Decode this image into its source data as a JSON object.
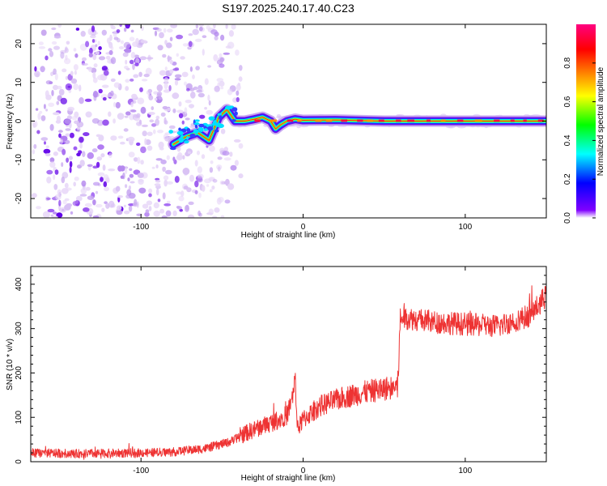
{
  "title": "S197.2025.240.17.40.C23",
  "chart_data": [
    {
      "type": "heatmap",
      "xlabel": "Height of straight line (km)",
      "ylabel": "Frequency (Hz)",
      "xlim": [
        -168,
        150
      ],
      "ylim": [
        -25,
        25
      ],
      "xticks": [
        -100,
        0,
        100
      ],
      "yticks": [
        -20,
        -10,
        0,
        10,
        20
      ],
      "colorbar": {
        "label": "Normalized spectral amplitude",
        "range": [
          0,
          1
        ],
        "ticks": [
          0.0,
          0.2,
          0.4,
          0.6,
          0.8
        ],
        "tick_labels": [
          "0.0",
          "0.2",
          "0.4",
          "0.6",
          "0.8"
        ],
        "colormap": "rainbow",
        "stops": [
          "#ffffff",
          "#8000ff",
          "#0000ff",
          "#00ffff",
          "#00ff00",
          "#ffff00",
          "#ff8000",
          "#ff0000",
          "#ff0080"
        ]
      },
      "signal_ridge": {
        "x": [
          -80,
          -72,
          -65,
          -58,
          -52,
          -47,
          -42,
          -36,
          -30,
          -25,
          -20,
          -17,
          -14,
          -10,
          -5,
          0,
          20,
          50,
          100,
          150
        ],
        "y": [
          -6,
          -4,
          -3,
          -5,
          1,
          3,
          0,
          0,
          0.5,
          1,
          0,
          -2,
          -1,
          0,
          0.5,
          0.2,
          0.3,
          0,
          0,
          0
        ]
      },
      "noise_region_x": [
        -168,
        -42
      ]
    },
    {
      "type": "line",
      "xlabel": "Height of straight line (km)",
      "ylabel": "SNR (10 * v/v)",
      "xlim": [
        -168,
        150
      ],
      "ylim": [
        0,
        440
      ],
      "xticks": [
        -100,
        0,
        100
      ],
      "yticks": [
        0,
        100,
        200,
        300,
        400
      ],
      "series": [
        {
          "name": "SNR",
          "color": "#ee3333",
          "x": [
            -168,
            -140,
            -100,
            -80,
            -60,
            -45,
            -35,
            -25,
            -15,
            -10,
            -6,
            -5,
            -4,
            -3,
            0,
            10,
            25,
            40,
            55,
            58,
            59,
            60,
            62,
            80,
            100,
            120,
            140,
            150
          ],
          "y": [
            20,
            18,
            20,
            22,
            30,
            45,
            65,
            80,
            95,
            105,
            150,
            190,
            110,
            75,
            95,
            125,
            145,
            158,
            168,
            170,
            230,
            320,
            325,
            315,
            310,
            305,
            330,
            375
          ]
        }
      ]
    }
  ]
}
